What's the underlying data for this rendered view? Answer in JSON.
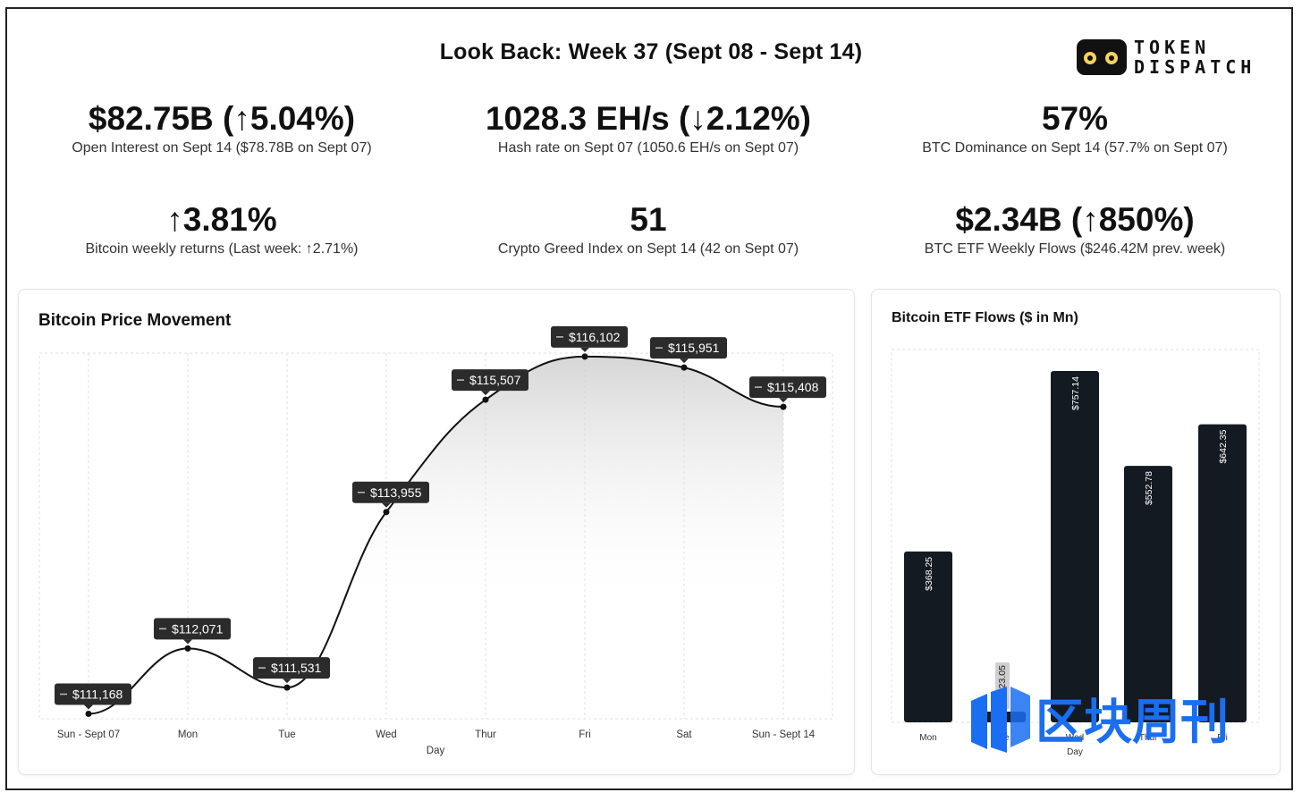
{
  "header": {
    "title": "Look Back: Week 37 (Sept 08 - Sept 14)",
    "logo_line1": "TOKEN",
    "logo_line2": "DISPATCH"
  },
  "stats": [
    {
      "value": "$82.75B (↑5.04%)",
      "label": "Open Interest on Sept 14 ($78.78B on Sept 07)"
    },
    {
      "value": "1028.3 EH/s (↓2.12%)",
      "label": "Hash rate on Sept 07 (1050.6 EH/s on Sept 07)"
    },
    {
      "value": "57%",
      "label": "BTC Dominance on Sept 14 (57.7% on Sept 07)"
    },
    {
      "value": "↑3.81%",
      "label": "Bitcoin weekly returns (Last week: ↑2.71%)"
    },
    {
      "value": "51",
      "label": "Crypto Greed Index on Sept 14 (42 on Sept 07)"
    },
    {
      "value": "$2.34B (↑850%)",
      "label": "BTC ETF Weekly Flows ($246.42M prev. week)"
    }
  ],
  "watermark": "区块周刊",
  "colors": {
    "bar": "#141a21",
    "line": "#111111",
    "tooltip": "#2b2b2b",
    "grid": "#e2e2e2"
  },
  "chart_data": [
    {
      "type": "line",
      "title": "Bitcoin Price Movement",
      "xlabel": "Day",
      "ylabel": "",
      "categories": [
        "Sun - Sept 07",
        "Mon",
        "Tue",
        "Wed",
        "Thur",
        "Fri",
        "Sat",
        "Sun - Sept 14"
      ],
      "values": [
        111168,
        112071,
        111531,
        113955,
        115507,
        116102,
        115951,
        115408
      ],
      "value_labels": [
        "$111,168",
        "$112,071",
        "$111,531",
        "$113,955",
        "$115,507",
        "$116,102",
        "$115,951",
        "$115,408"
      ],
      "ylim": [
        111100,
        116150
      ],
      "grid": true,
      "area_fill": true
    },
    {
      "type": "bar",
      "title": "Bitcoin ETF Flows ($ in Mn)",
      "xlabel": "Day",
      "ylabel": "",
      "categories": [
        "Mon",
        "Tue",
        "Wed",
        "Thur",
        "Fri"
      ],
      "values": [
        368.25,
        23.05,
        757.14,
        552.78,
        642.35
      ],
      "value_labels": [
        "$368.25",
        "$23.05",
        "$757.14",
        "$552.78",
        "$642.35"
      ],
      "ylim": [
        0,
        800
      ],
      "grid": true
    }
  ]
}
